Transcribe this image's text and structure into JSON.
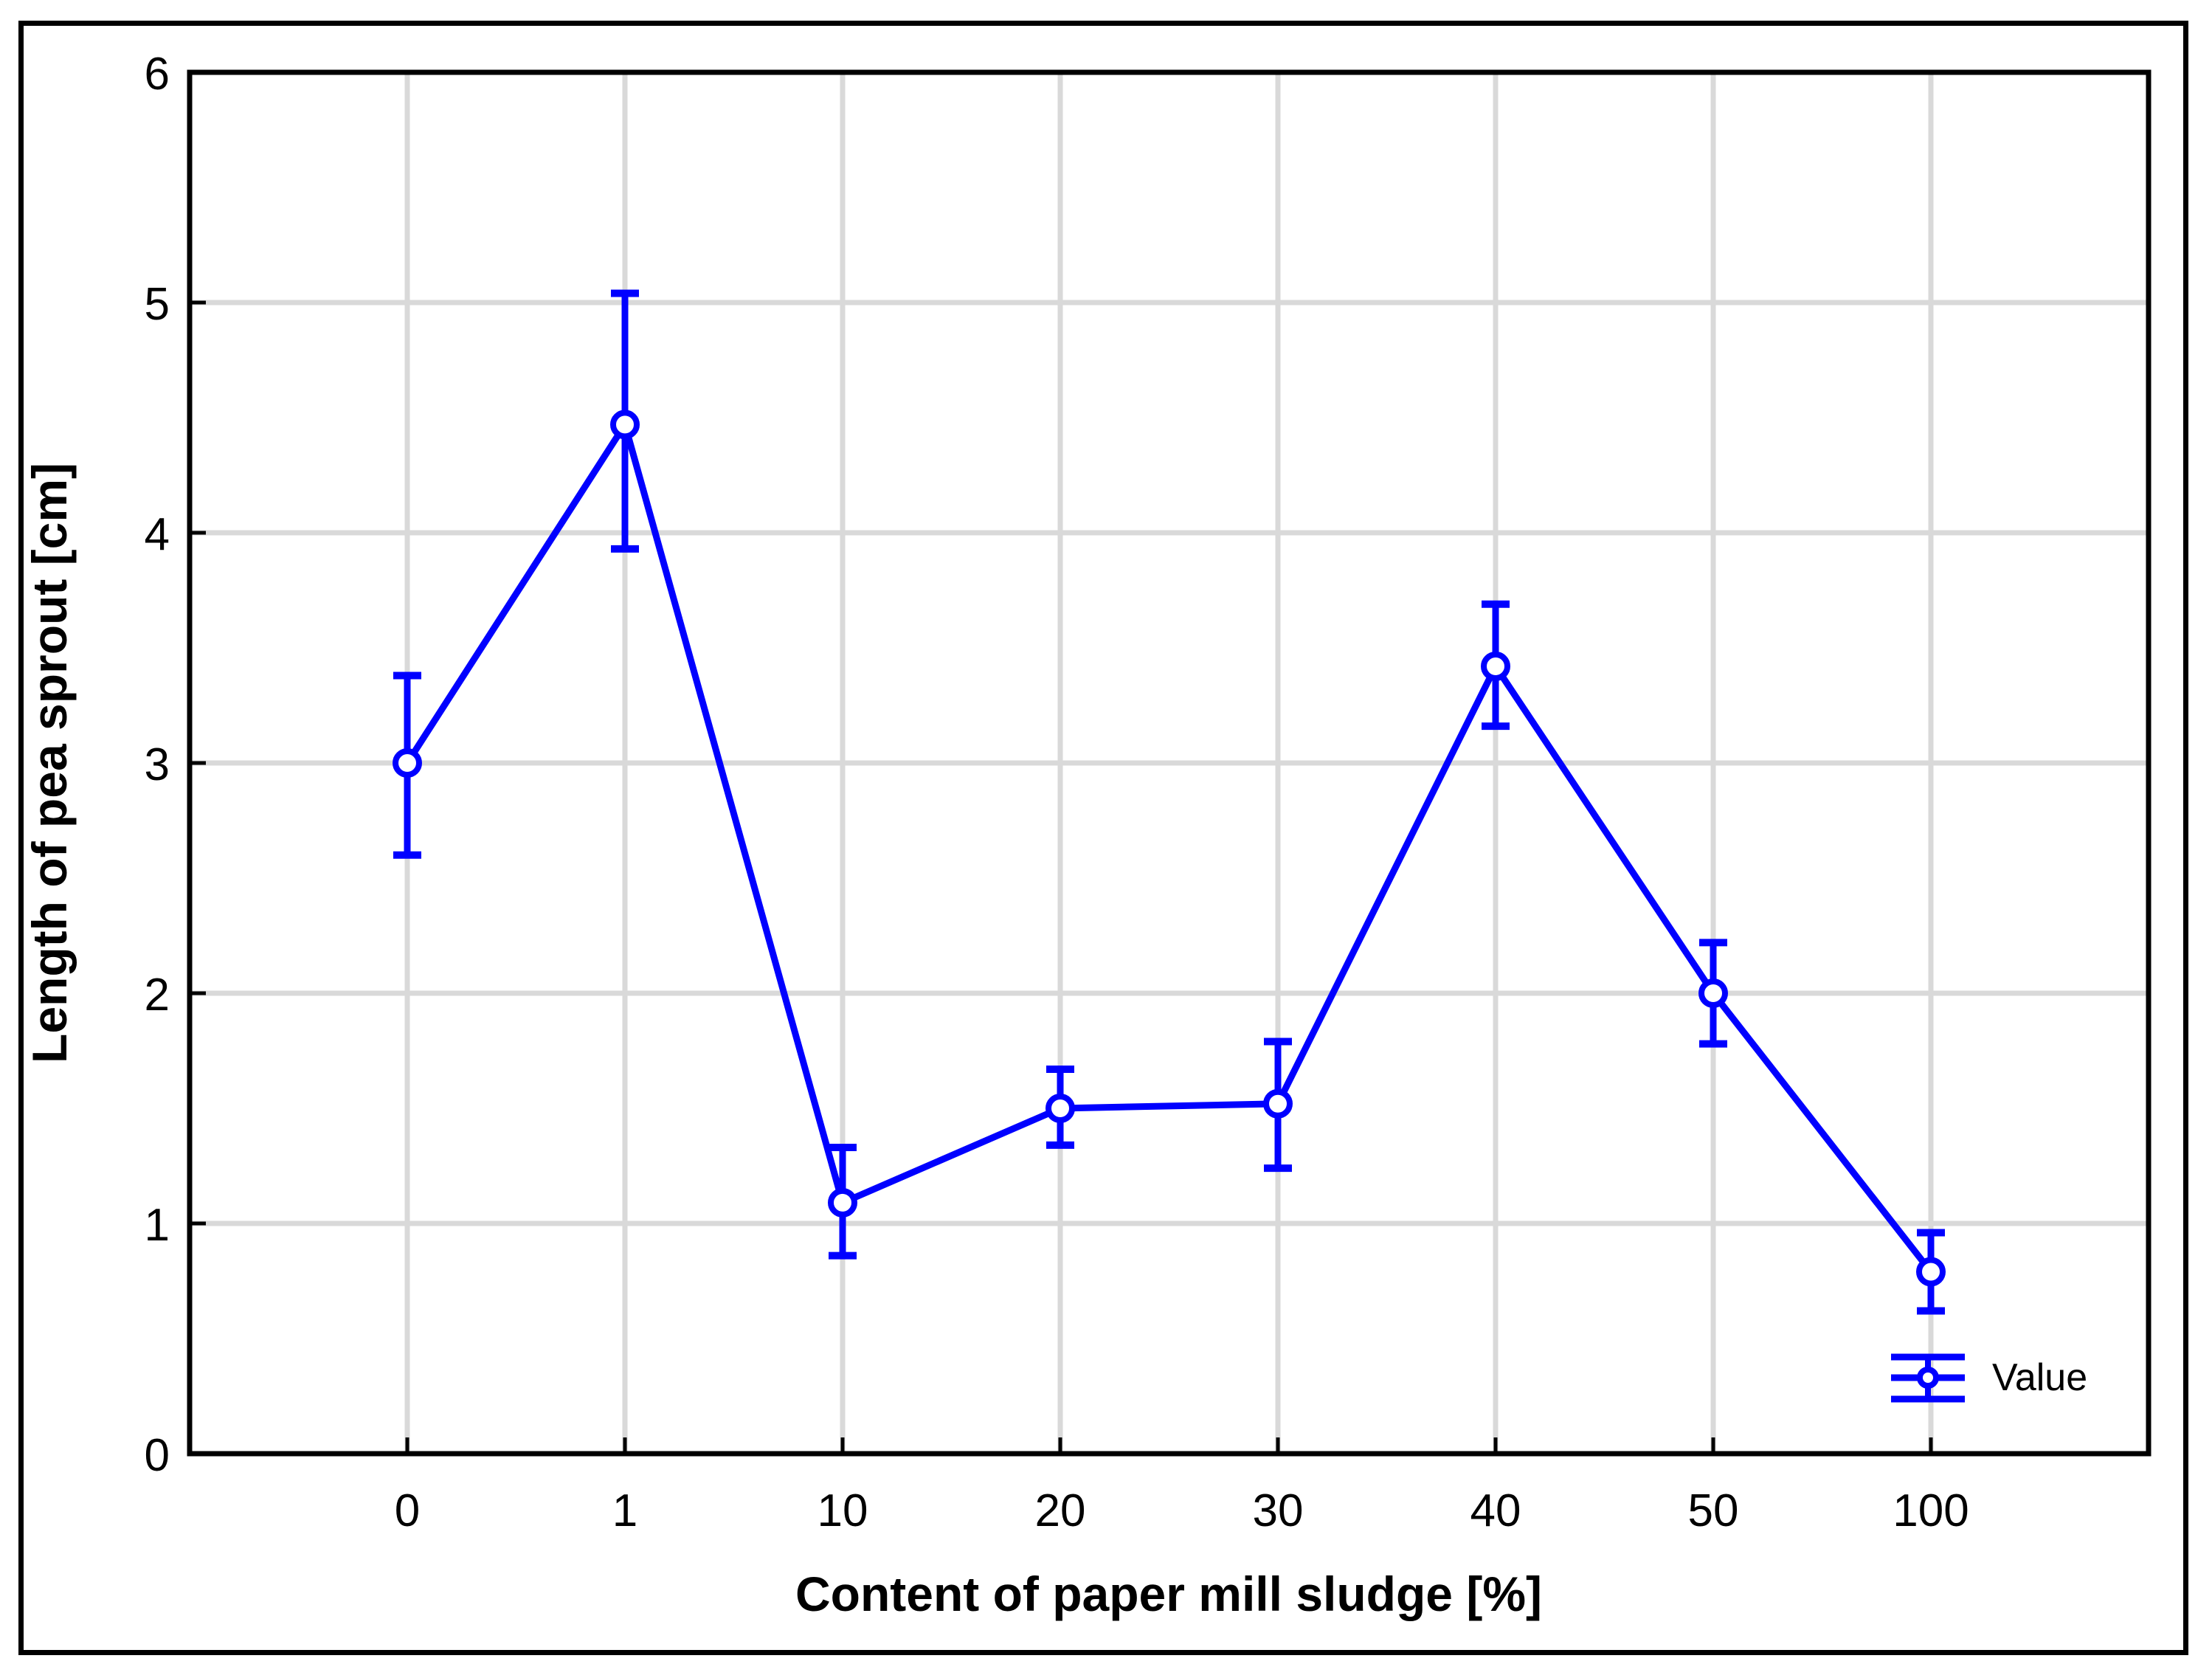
{
  "chart_data": {
    "type": "line",
    "title": "",
    "categories": [
      "0",
      "1",
      "10",
      "20",
      "30",
      "40",
      "50",
      "100"
    ],
    "series": [
      {
        "name": "Value",
        "values": [
          3.0,
          4.47,
          1.09,
          1.5,
          1.52,
          3.42,
          2.0,
          0.79
        ],
        "error_low": [
          2.6,
          3.93,
          0.86,
          1.34,
          1.24,
          3.16,
          1.78,
          0.62
        ],
        "error_high": [
          3.38,
          5.04,
          1.33,
          1.67,
          1.79,
          3.69,
          2.22,
          0.96
        ]
      }
    ],
    "xlabel": "Content of paper mill sludge [%]",
    "ylabel": "Length of pea sprout [cm]",
    "ylim": [
      0,
      6
    ],
    "yticks": [
      0,
      1,
      2,
      3,
      4,
      5,
      6
    ],
    "grid": true,
    "legend": {
      "label": "Value",
      "position": "bottom-right"
    },
    "marker": "open-circle",
    "colors": {
      "series": "#0000ff",
      "grid": "#d9d9d9",
      "axis": "#000000",
      "background": "#ffffff"
    }
  }
}
